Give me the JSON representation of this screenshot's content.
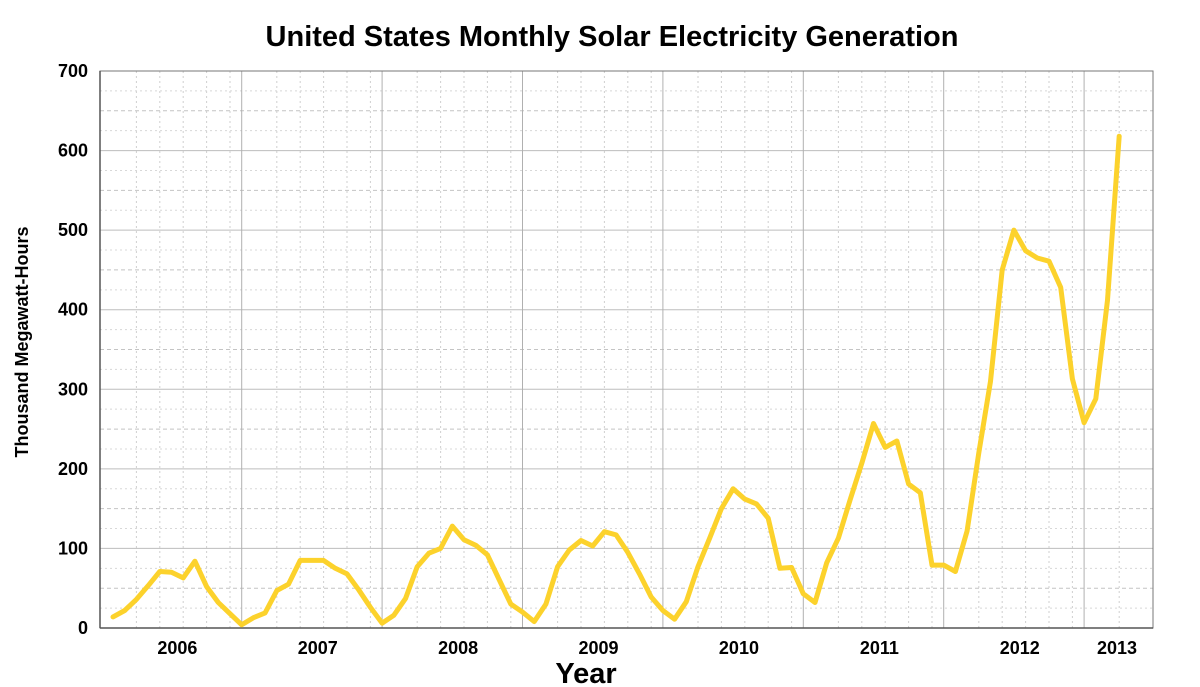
{
  "chart_data": {
    "type": "line",
    "title": "United States Monthly Solar Electricity Generation",
    "xlabel": "Year",
    "ylabel": "Thousand Megawatt-Hours",
    "ylim": [
      0,
      700
    ],
    "yticks": [
      0,
      100,
      200,
      300,
      400,
      500,
      600,
      700
    ],
    "xtick_labels": [
      "2006",
      "2007",
      "2008",
      "2009",
      "2010",
      "2011",
      "2012",
      "2013"
    ],
    "grid": true,
    "line_color": "#fcd22c",
    "series": [
      {
        "x": [
          "2006-01",
          "2006-02",
          "2006-03",
          "2006-04",
          "2006-05",
          "2006-06",
          "2006-07",
          "2006-08",
          "2006-09",
          "2006-10",
          "2006-11",
          "2006-12",
          "2007-01",
          "2007-02",
          "2007-03",
          "2007-04",
          "2007-05",
          "2007-06",
          "2007-07",
          "2007-08",
          "2007-09",
          "2007-10",
          "2007-11",
          "2007-12",
          "2008-01",
          "2008-02",
          "2008-03",
          "2008-04",
          "2008-05",
          "2008-06",
          "2008-07",
          "2008-08",
          "2008-09",
          "2008-10",
          "2008-11",
          "2008-12",
          "2009-01",
          "2009-02",
          "2009-03",
          "2009-04",
          "2009-05",
          "2009-06",
          "2009-07",
          "2009-08",
          "2009-09",
          "2009-10",
          "2009-11",
          "2009-12",
          "2010-01",
          "2010-02",
          "2010-03",
          "2010-04",
          "2010-05",
          "2010-06",
          "2010-07",
          "2010-08",
          "2010-09",
          "2010-10",
          "2010-11",
          "2010-12",
          "2011-01",
          "2011-02",
          "2011-03",
          "2011-04",
          "2011-05",
          "2011-06",
          "2011-07",
          "2011-08",
          "2011-09",
          "2011-10",
          "2011-11",
          "2011-12",
          "2012-01",
          "2012-02",
          "2012-03",
          "2012-04",
          "2012-05",
          "2012-06",
          "2012-07",
          "2012-08",
          "2012-09",
          "2012-10",
          "2012-11",
          "2012-12",
          "2013-01",
          "2013-02",
          "2013-03"
        ],
        "values": [
          14,
          22,
          36,
          53,
          71,
          70,
          63,
          84,
          52,
          32,
          18,
          4,
          13,
          19,
          47,
          55,
          85,
          85,
          85,
          75,
          68,
          48,
          26,
          6,
          16,
          37,
          77,
          94,
          100,
          128,
          111,
          104,
          92,
          61,
          30,
          20,
          8,
          30,
          77,
          98,
          110,
          103,
          121,
          117,
          95,
          68,
          39,
          22,
          11,
          33,
          77,
          113,
          150,
          175,
          162,
          156,
          138,
          75,
          76,
          43,
          32,
          82,
          113,
          161,
          207,
          257,
          227,
          235,
          181,
          170,
          79,
          79,
          71,
          122,
          220,
          310,
          450,
          500,
          474,
          465,
          461,
          428,
          313,
          258,
          288,
          412,
          618
        ]
      }
    ]
  }
}
